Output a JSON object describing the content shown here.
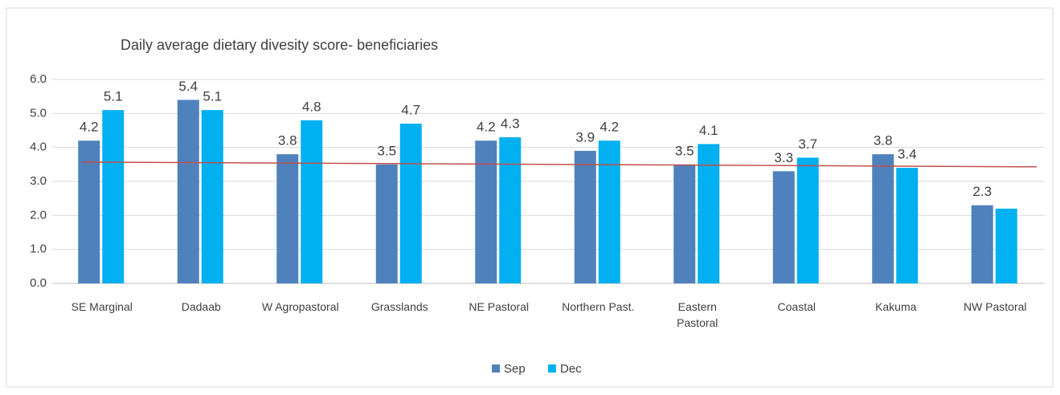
{
  "chart_data": {
    "type": "bar",
    "title": "Daily average dietary divesity score- beneficiaries",
    "categories": [
      "SE Marginal",
      "Dadaab",
      "W Agropastoral",
      "Grasslands",
      "NE Pastoral",
      "Northern Past.",
      "Eastern Pastoral",
      "Coastal",
      "Kakuma",
      "NW Pastoral"
    ],
    "series": [
      {
        "name": "Sep",
        "color": "#4f81bd",
        "values": [
          4.2,
          5.4,
          3.8,
          3.5,
          4.2,
          3.9,
          3.5,
          3.3,
          3.8,
          2.3
        ],
        "value_labels": [
          "4.2",
          "5.4",
          "3.8",
          "3.5",
          "4.2",
          "3.9",
          "3.5",
          "3.3",
          "3.8",
          "2.3"
        ]
      },
      {
        "name": "Dec",
        "color": "#00b0f0",
        "values": [
          5.1,
          5.1,
          4.8,
          4.7,
          4.3,
          4.2,
          4.1,
          3.7,
          3.4,
          2.2
        ],
        "value_labels": [
          "5.1",
          "5.1",
          "4.8",
          "4.7",
          "4.3",
          "4.2",
          "4.1",
          "3.7",
          "3.4",
          null
        ]
      }
    ],
    "trendline": {
      "color": "#c0504d",
      "values": [
        3.57,
        3.43
      ]
    },
    "ylim": [
      0,
      6
    ],
    "yticks": [
      {
        "value": 0,
        "label": "0.0"
      },
      {
        "value": 1,
        "label": "1.0"
      },
      {
        "value": 2,
        "label": "2.0"
      },
      {
        "value": 3,
        "label": "3.0"
      },
      {
        "value": 4,
        "label": "4.0"
      },
      {
        "value": 5,
        "label": "5.0"
      },
      {
        "value": 6,
        "label": "6.0"
      }
    ],
    "grid": true,
    "legend": "bottom"
  }
}
